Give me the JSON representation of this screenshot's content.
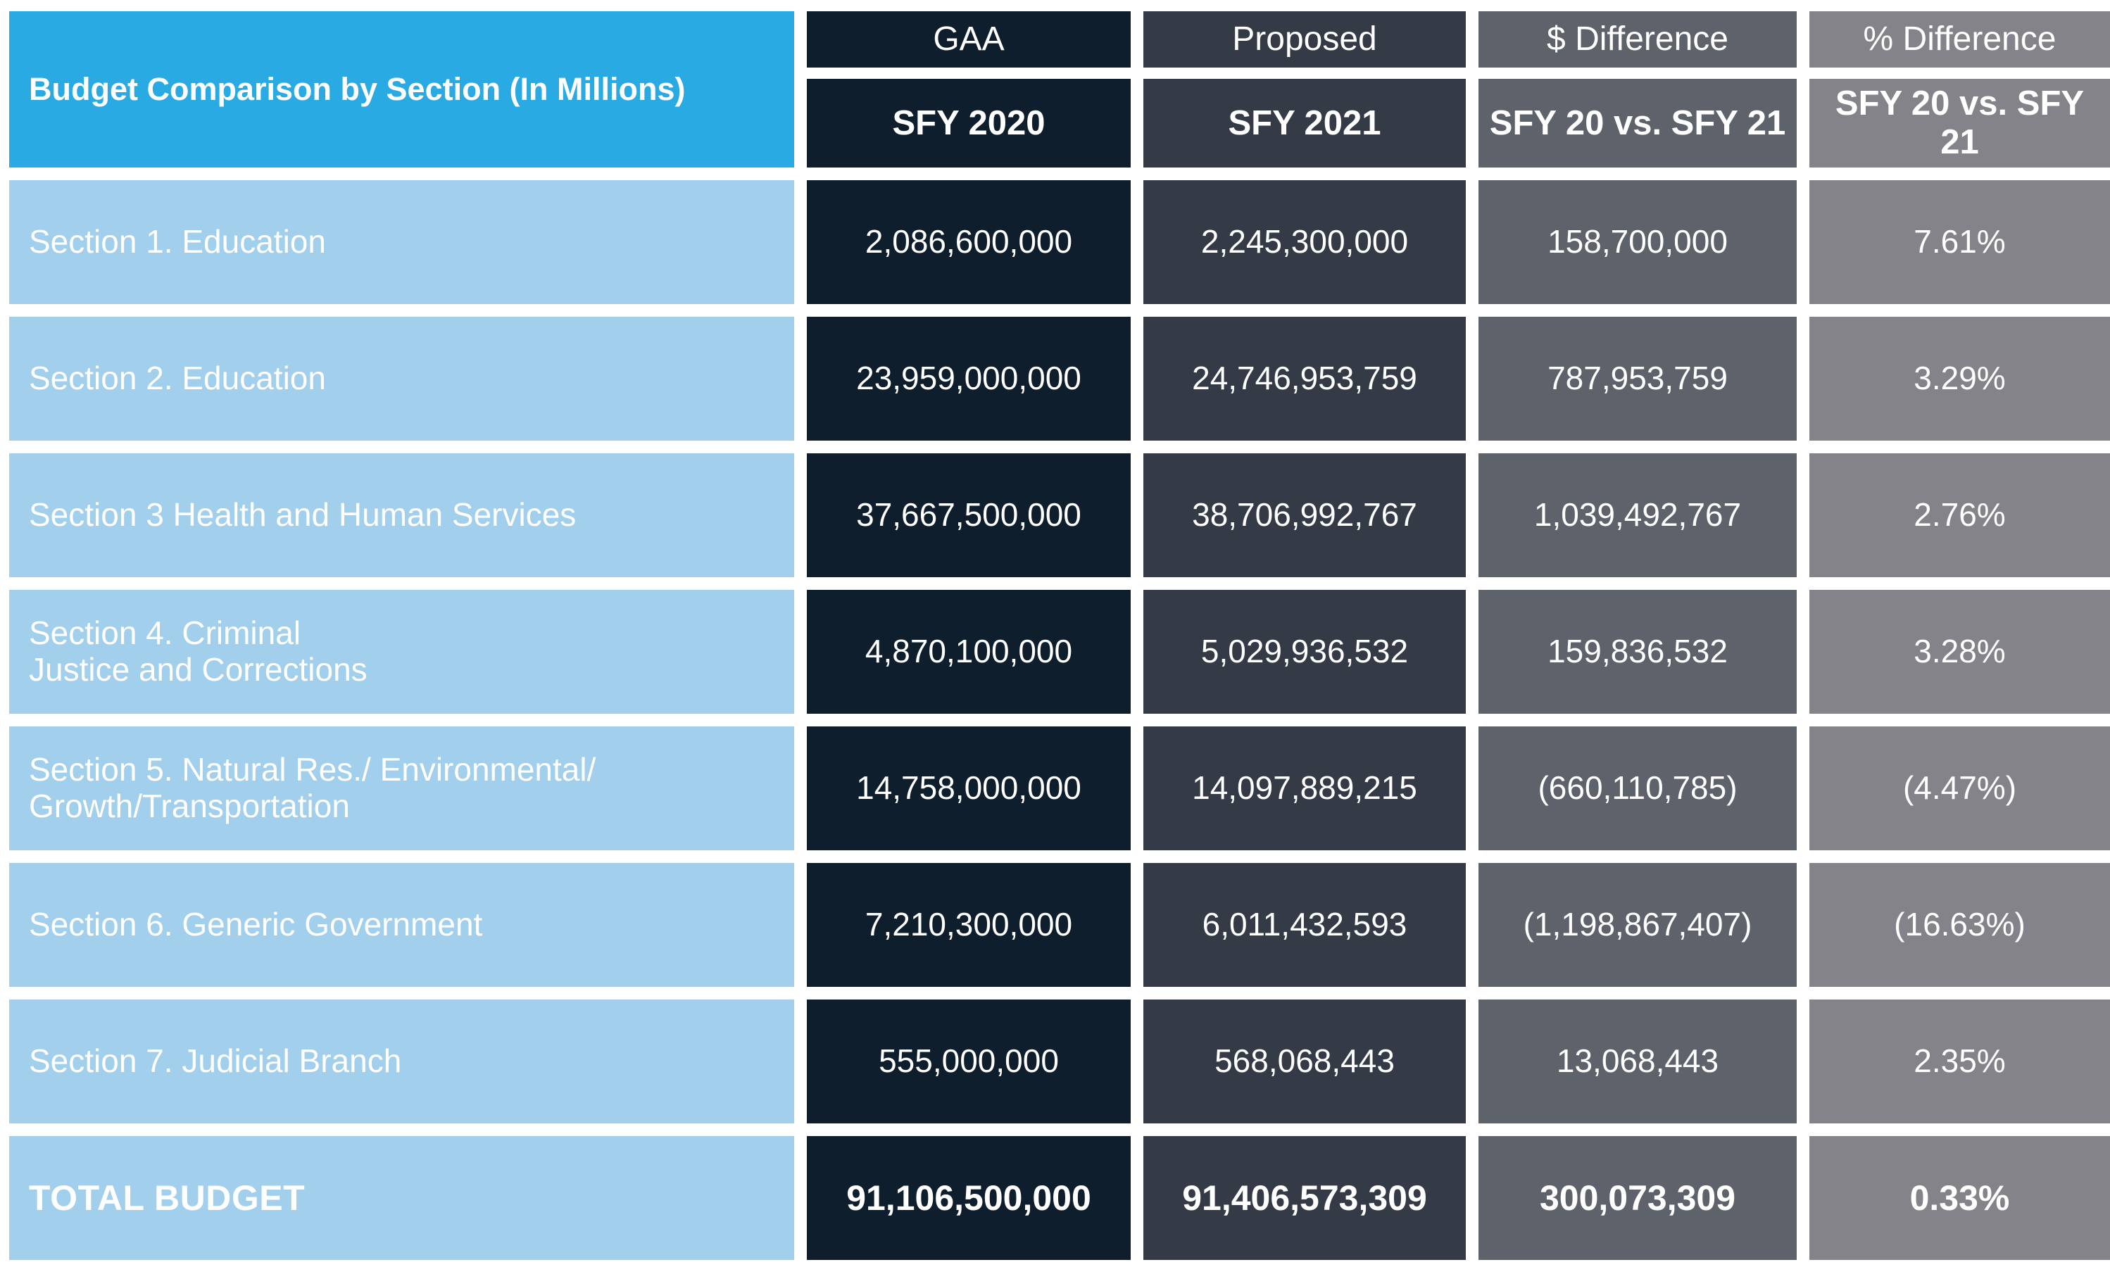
{
  "chart_data": {
    "type": "table",
    "title": "Budget Comparison by Section (In Millions)",
    "columns": [
      {
        "group": "GAA",
        "label": "SFY 2020"
      },
      {
        "group": "Proposed",
        "label": "SFY 2021"
      },
      {
        "group": "$ Difference",
        "label": "SFY 20 vs. SFY 21"
      },
      {
        "group": "% Difference",
        "label": "SFY 20 vs. SFY 21"
      }
    ],
    "rows": [
      {
        "label": "Section 1. Education",
        "values": [
          "2,086,600,000",
          "2,245,300,000",
          "158,700,000",
          "7.61%"
        ]
      },
      {
        "label": "Section 2. Education",
        "values": [
          "23,959,000,000",
          "24,746,953,759",
          "787,953,759",
          "3.29%"
        ]
      },
      {
        "label": "Section 3 Health and Human Services",
        "values": [
          "37,667,500,000",
          "38,706,992,767",
          "1,039,492,767",
          "2.76%"
        ]
      },
      {
        "label": "Section 4. Criminal\nJustice and Corrections",
        "values": [
          "4,870,100,000",
          "5,029,936,532",
          "159,836,532",
          "3.28%"
        ]
      },
      {
        "label": "Section 5. Natural Res./ Environmental/\nGrowth/Transportation",
        "values": [
          "14,758,000,000",
          "14,097,889,215",
          "(660,110,785)",
          "(4.47%)"
        ]
      },
      {
        "label": "Section 6. Generic Government",
        "values": [
          "7,210,300,000",
          "6,011,432,593",
          "(1,198,867,407)",
          "(16.63%)"
        ]
      },
      {
        "label": "Section 7. Judicial Branch",
        "values": [
          "555,000,000",
          "568,068,443",
          "13,068,443",
          "2.35%"
        ]
      },
      {
        "label": "TOTAL BUDGET",
        "values": [
          "91,106,500,000",
          "91,406,573,309",
          "300,073,309",
          "0.33%"
        ],
        "is_total": true
      }
    ],
    "colors": {
      "title_bg": "#29aae2",
      "label_bg": "#a2cfec",
      "col_bg": [
        "#0e1e2c",
        "#343b46",
        "#5e626b",
        "#838389"
      ],
      "text": "#ffffff"
    }
  }
}
